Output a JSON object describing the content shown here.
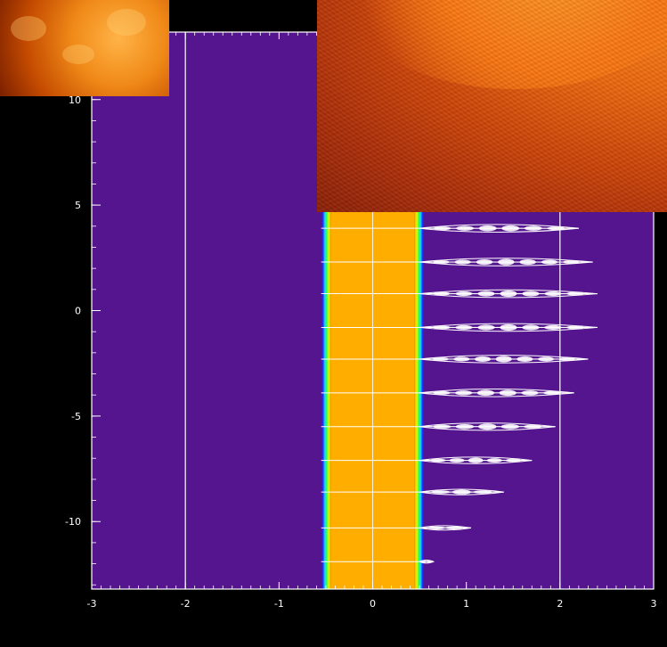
{
  "chart_data": {
    "type": "scatter",
    "title": "",
    "xlabel": "",
    "ylabel": "",
    "xlim": [
      -3,
      3
    ],
    "ylim": [
      -13.2,
      13.2
    ],
    "x_ticks": [
      -3,
      -2,
      -1,
      0,
      1,
      2,
      3
    ],
    "y_ticks": [
      -10,
      -5,
      0,
      5,
      10
    ],
    "x_tick_labels": [
      "-3",
      "-2",
      "-1",
      "0",
      "1",
      "2",
      "3"
    ],
    "y_tick_labels": [
      "-10",
      "-5",
      "0",
      "5",
      "10"
    ],
    "grid": false,
    "vertical_lines_x": [
      -2,
      2
    ],
    "band": {
      "x_range": [
        -0.55,
        0.55
      ],
      "fill_x_range": [
        -0.45,
        0.45
      ]
    },
    "horizontal_lines_y": [
      -11.9,
      -10.3,
      -8.6,
      -7.1,
      -5.5,
      -3.9,
      -2.3,
      -0.8,
      0.8,
      2.3,
      3.9
    ],
    "horizontal_lines_x_range": [
      -0.55,
      0.55
    ],
    "streaks": [
      {
        "y": -11.9,
        "x_end": 0.65
      },
      {
        "y": -10.3,
        "x_end": 1.05
      },
      {
        "y": -8.6,
        "x_end": 1.4
      },
      {
        "y": -7.1,
        "x_end": 1.7
      },
      {
        "y": -5.5,
        "x_end": 1.95
      },
      {
        "y": -3.9,
        "x_end": 2.15
      },
      {
        "y": -2.3,
        "x_end": 2.3
      },
      {
        "y": -0.8,
        "x_end": 2.4
      },
      {
        "y": 0.8,
        "x_end": 2.4
      },
      {
        "y": 2.3,
        "x_end": 2.35
      },
      {
        "y": 3.9,
        "x_end": 2.2
      }
    ],
    "colors": {
      "background": "#000000",
      "plot_fill": "#54158f",
      "band_core": "#ffae00",
      "band_edge_gradient": [
        "#54158f",
        "#1a2bff",
        "#1fd0ff",
        "#2cff5a",
        "#d8ff00",
        "#ffae00"
      ],
      "lines": "#ffffff"
    }
  }
}
